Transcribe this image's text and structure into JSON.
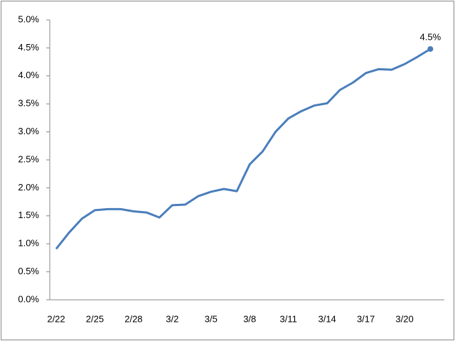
{
  "chart_data": {
    "type": "line",
    "categories": [
      "2/22",
      null,
      null,
      "2/25",
      null,
      null,
      "2/28",
      null,
      null,
      "3/2",
      null,
      null,
      "3/5",
      null,
      null,
      "3/8",
      null,
      null,
      "3/11",
      null,
      null,
      "3/14",
      null,
      null,
      "3/17",
      null,
      null,
      "3/20",
      null,
      null
    ],
    "series": [
      {
        "color": "#4a7ebb",
        "values": [
          0.91,
          1.2,
          1.45,
          1.6,
          1.62,
          1.62,
          1.58,
          1.56,
          1.47,
          1.69,
          1.7,
          1.85,
          1.93,
          1.98,
          1.94,
          2.42,
          2.65,
          3.0,
          3.24,
          3.37,
          3.47,
          3.51,
          3.75,
          3.88,
          4.05,
          4.12,
          4.11,
          4.21,
          4.34,
          4.48
        ],
        "value_labels": [
          null,
          null,
          null,
          null,
          null,
          null,
          null,
          null,
          null,
          null,
          null,
          null,
          null,
          null,
          null,
          null,
          null,
          null,
          null,
          null,
          null,
          null,
          null,
          null,
          null,
          null,
          null,
          null,
          null,
          "4.5%"
        ]
      }
    ],
    "ylim": [
      0,
      5
    ],
    "yticks": [
      {
        "value": 0,
        "label": "0.0%"
      },
      {
        "value": 0.5,
        "label": "0.5%"
      },
      {
        "value": 1,
        "label": "1.0%"
      },
      {
        "value": 1.5,
        "label": "1.5%"
      },
      {
        "value": 2,
        "label": "2.0%"
      },
      {
        "value": 2.5,
        "label": "2.5%"
      },
      {
        "value": 3,
        "label": "3.0%"
      },
      {
        "value": 3.5,
        "label": "3.5%"
      },
      {
        "value": 4,
        "label": "4.0%"
      },
      {
        "value": 4.5,
        "label": "4.5%"
      },
      {
        "value": 5,
        "label": "5.0%"
      }
    ],
    "grid": false
  }
}
